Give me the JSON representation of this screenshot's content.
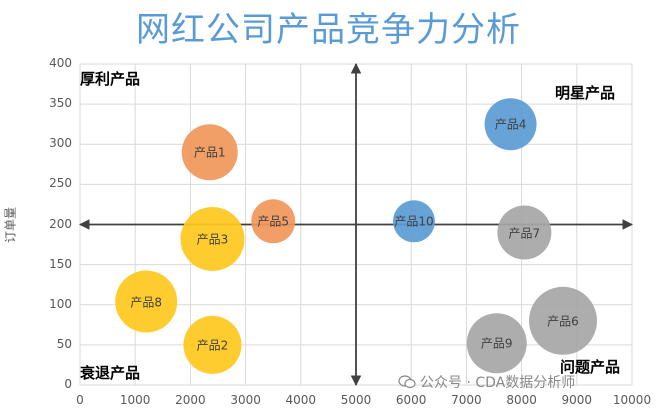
{
  "chart_data": {
    "type": "bubble",
    "title": "网红公司产品竞争力分析",
    "xlabel": "",
    "ylabel": "订单量",
    "xlim": [
      0,
      10000
    ],
    "ylim": [
      0,
      400
    ],
    "x_ticks": [
      "0",
      "1000",
      "2000",
      "3000",
      "4000",
      "5000",
      "6000",
      "7000",
      "8000",
      "9000",
      "10000"
    ],
    "y_ticks": [
      "0",
      "50",
      "100",
      "150",
      "200",
      "250",
      "300",
      "350",
      "400"
    ],
    "divider_x": 5000,
    "divider_y": 200,
    "quadrants": {
      "top_left": "厚利产品",
      "top_right": "明星产品",
      "bottom_left": "衰退产品",
      "bottom_right": "问题产品"
    },
    "points": [
      {
        "name": "产品1",
        "x": 2350,
        "y": 290,
        "size": 28,
        "color": "#f0965a"
      },
      {
        "name": "产品2",
        "x": 2400,
        "y": 50,
        "size": 29,
        "color": "#ffc81e"
      },
      {
        "name": "产品3",
        "x": 2400,
        "y": 182,
        "size": 32,
        "color": "#ffc81e"
      },
      {
        "name": "产品4",
        "x": 7800,
        "y": 325,
        "size": 26,
        "color": "#5b9bd5"
      },
      {
        "name": "产品5",
        "x": 3500,
        "y": 204,
        "size": 22,
        "color": "#f0965a"
      },
      {
        "name": "产品6",
        "x": 8750,
        "y": 80,
        "size": 34,
        "color": "#a6a6a6"
      },
      {
        "name": "产品7",
        "x": 8050,
        "y": 190,
        "size": 27,
        "color": "#a6a6a6"
      },
      {
        "name": "产品8",
        "x": 1200,
        "y": 104,
        "size": 31,
        "color": "#ffc81e"
      },
      {
        "name": "产品9",
        "x": 7550,
        "y": 52,
        "size": 30,
        "color": "#a6a6a6"
      },
      {
        "name": "产品10",
        "x": 6050,
        "y": 204,
        "size": 21,
        "color": "#5b9bd5"
      }
    ]
  },
  "watermark": "公众号 · CDA数据分析师"
}
